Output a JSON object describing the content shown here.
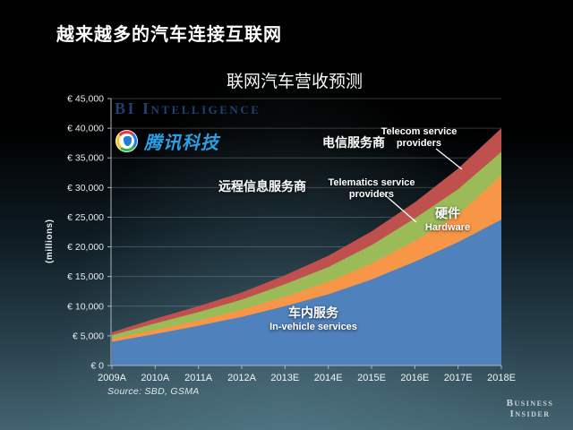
{
  "slide": {
    "title": "越来越多的汽车连接互联网"
  },
  "branding": {
    "bi_intelligence": "BI Intelligence",
    "tencent_tech": "腾讯科技",
    "footer_line1": "Business",
    "footer_line2": "Insider"
  },
  "chart_data": {
    "type": "area",
    "stacked": true,
    "title": "联网汽车营收预测",
    "ylabel": "(millions)",
    "currency": "€",
    "ylim": [
      0,
      45000
    ],
    "ytick_step": 5000,
    "grid": true,
    "legend_position": "in-chart-labels",
    "y_tick_labels": [
      "€ 0",
      "€ 5,000",
      "€ 10,000",
      "€ 15,000",
      "€ 20,000",
      "€ 25,000",
      "€ 30,000",
      "€ 35,000",
      "€ 40,000",
      "€ 45,000"
    ],
    "categories": [
      "2009A",
      "2010A",
      "2011A",
      "2012A",
      "2013E",
      "2014E",
      "2015E",
      "2016E",
      "2017E",
      "2018E"
    ],
    "series": [
      {
        "name_cn": "车内服务",
        "name_en": "In-vehicle services",
        "color": "#4f81bd",
        "values": [
          4000,
          5300,
          6700,
          8200,
          10000,
          12000,
          14500,
          17500,
          20800,
          24600
        ]
      },
      {
        "name_cn": "硬件",
        "name_en": "Hardware",
        "color": "#f79646",
        "values": [
          500,
          700,
          900,
          1200,
          1600,
          2100,
          2700,
          3500,
          4700,
          7400
        ]
      },
      {
        "name_cn": "远程信息服务商",
        "name_en": "Telematics service providers",
        "color": "#9bbb59",
        "values": [
          600,
          1100,
          1400,
          1700,
          2100,
          2500,
          3100,
          3800,
          4200,
          4000
        ]
      },
      {
        "name_cn": "电信服务商",
        "name_en": "Telecom service providers",
        "color": "#c0504d",
        "values": [
          500,
          800,
          1000,
          1200,
          1500,
          1900,
          2300,
          2700,
          3500,
          4000
        ]
      }
    ],
    "source": "Source: SBD, GSMA"
  }
}
